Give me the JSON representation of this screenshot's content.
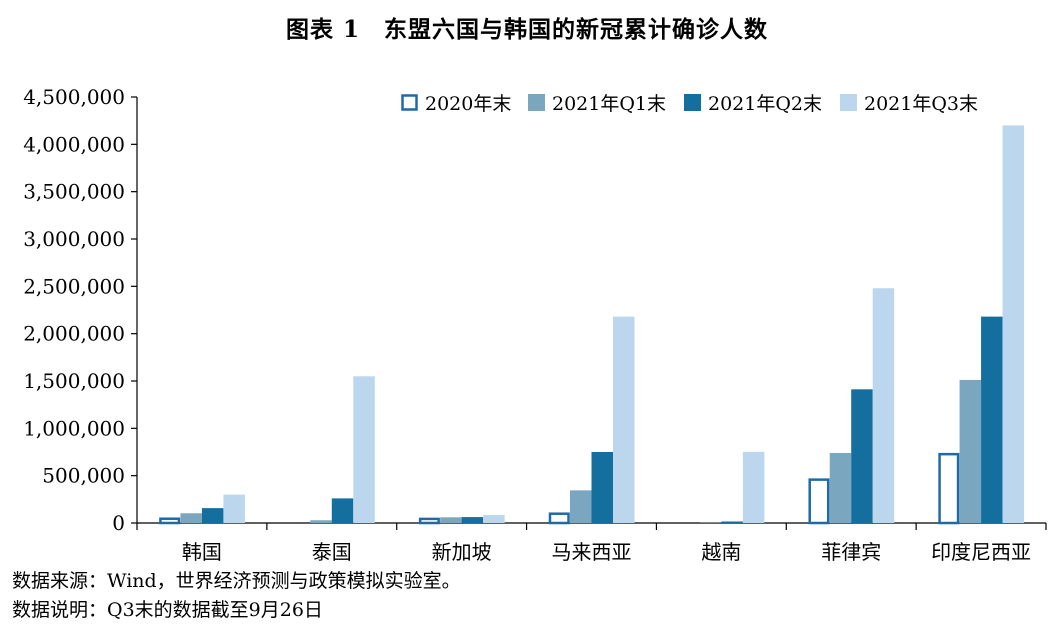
{
  "title": "图表 1　东盟六国与韩国的新冠累计确诊人数",
  "footnotes": {
    "source": "数据来源：Wind，世界经济预测与政策模拟实验室。",
    "note": "数据说明：Q3末的数据截至9月26日"
  },
  "chart_data": {
    "type": "bar",
    "title": "图表 1　东盟六国与韩国的新冠累计确诊人数",
    "xlabel": "",
    "ylabel": "",
    "ylim": [
      0,
      4500000
    ],
    "yticks": [
      0,
      500000,
      1000000,
      1500000,
      2000000,
      2500000,
      3000000,
      3500000,
      4000000,
      4500000
    ],
    "ytick_labels": [
      "0",
      "500,000",
      "1,000,000",
      "1,500,000",
      "2,000,000",
      "2,500,000",
      "3,000,000",
      "3,500,000",
      "4,000,000",
      "4,500,000"
    ],
    "categories": [
      "韩国",
      "泰国",
      "新加坡",
      "马来西亚",
      "越南",
      "菲律宾",
      "印度尼西亚"
    ],
    "legend_position": "top-right",
    "grid": false,
    "series": [
      {
        "name": "2020年末",
        "style": "outline",
        "color": "#1f6aa5",
        "values": [
          61000,
          7000,
          59000,
          114000,
          1500,
          474000,
          743000
        ]
      },
      {
        "name": "2021年Q1末",
        "style": "fill",
        "color": "#7ba6c0",
        "values": [
          103000,
          29000,
          60000,
          345000,
          2600,
          740000,
          1511000
        ]
      },
      {
        "name": "2021年Q2末",
        "style": "fill",
        "color": "#146e9e",
        "values": [
          157000,
          260000,
          62500,
          750000,
          16000,
          1412000,
          2180000
        ]
      },
      {
        "name": "2021年Q3末",
        "style": "fill",
        "color": "#bcd7ed",
        "values": [
          300000,
          1550000,
          85000,
          2180000,
          752000,
          2480000,
          4200000
        ]
      }
    ]
  }
}
